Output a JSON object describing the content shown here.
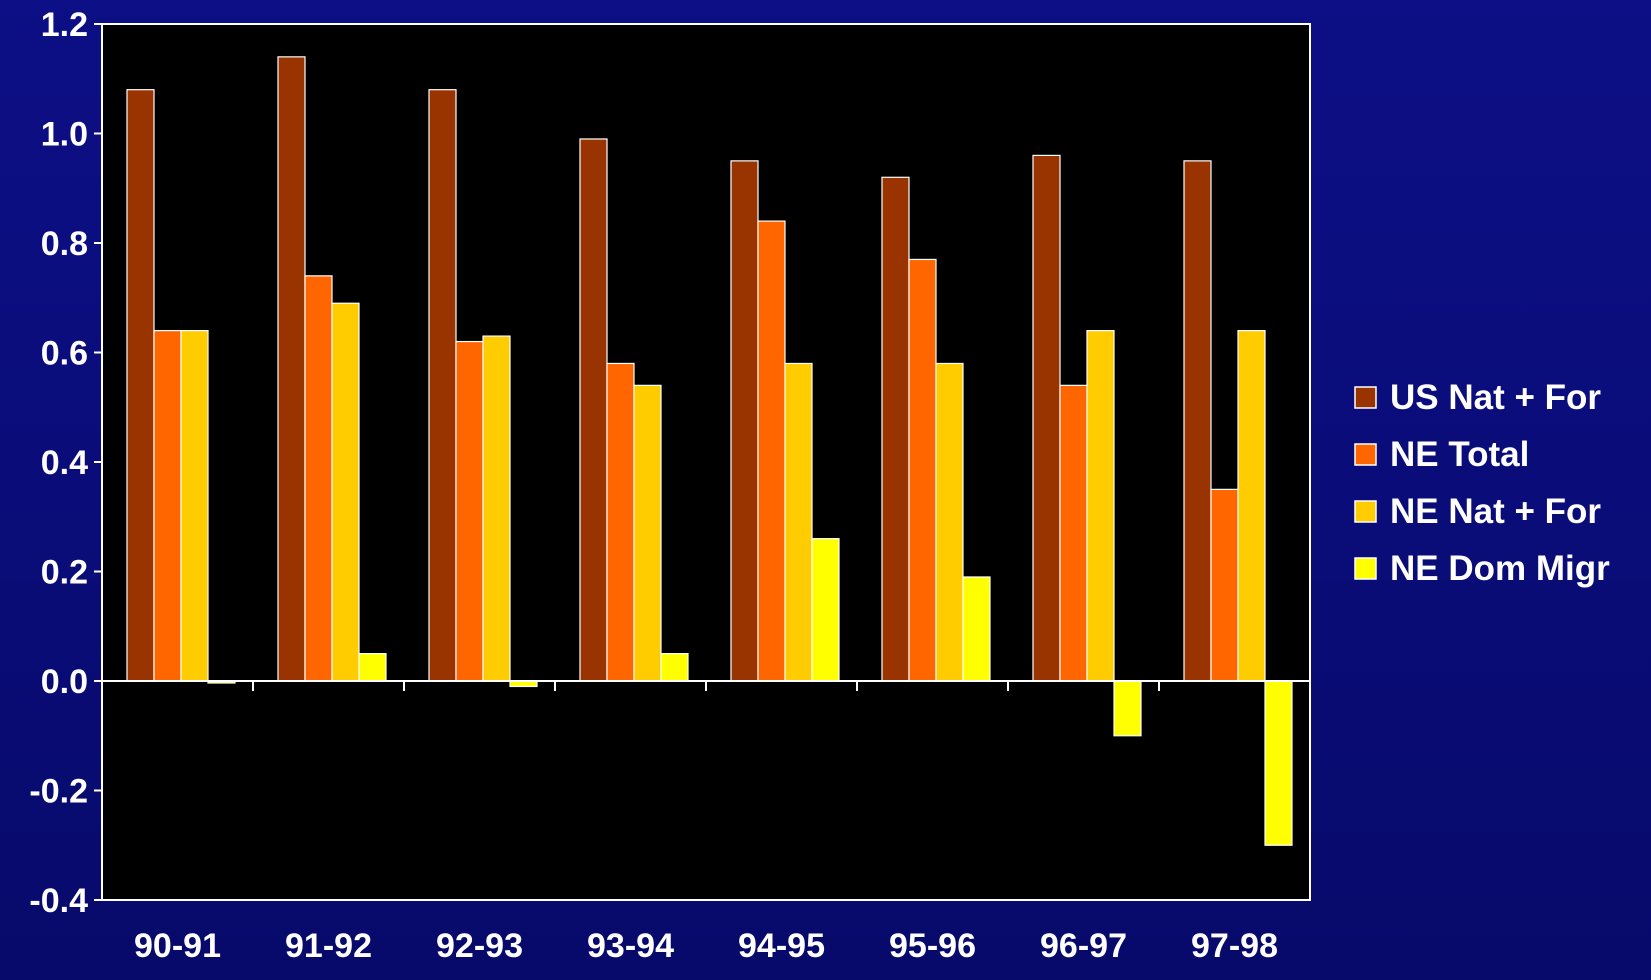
{
  "chart_data": {
    "type": "bar",
    "title": "",
    "xlabel": "",
    "ylabel": "",
    "categories": [
      "90-91",
      "91-92",
      "92-93",
      "93-94",
      "94-95",
      "95-96",
      "96-97",
      "97-98"
    ],
    "series": [
      {
        "name": "US Nat + For",
        "color": "#993300",
        "values": [
          1.08,
          1.14,
          1.08,
          0.99,
          0.95,
          0.92,
          0.96,
          0.95
        ]
      },
      {
        "name": "NE Total",
        "color": "#ff6600",
        "values": [
          0.64,
          0.74,
          0.62,
          0.58,
          0.84,
          0.77,
          0.54,
          0.35
        ]
      },
      {
        "name": "NE Nat + For",
        "color": "#ffcc00",
        "values": [
          0.64,
          0.69,
          0.63,
          0.54,
          0.58,
          0.58,
          0.64,
          0.64
        ]
      },
      {
        "name": "NE Dom Migr",
        "color": "#ffff00",
        "values": [
          0.0,
          0.05,
          -0.01,
          0.05,
          0.26,
          0.19,
          -0.1,
          -0.3
        ]
      }
    ],
    "ylim": [
      -0.4,
      1.2
    ],
    "yticks": [
      "1.2",
      "1.0",
      "0.8",
      "0.6",
      "0.4",
      "0.2",
      "0.0",
      "-0.2",
      "-0.4"
    ],
    "grid": false,
    "legend_position": "right",
    "plot_background": "#000000",
    "page_background": "#0a0c7a"
  }
}
